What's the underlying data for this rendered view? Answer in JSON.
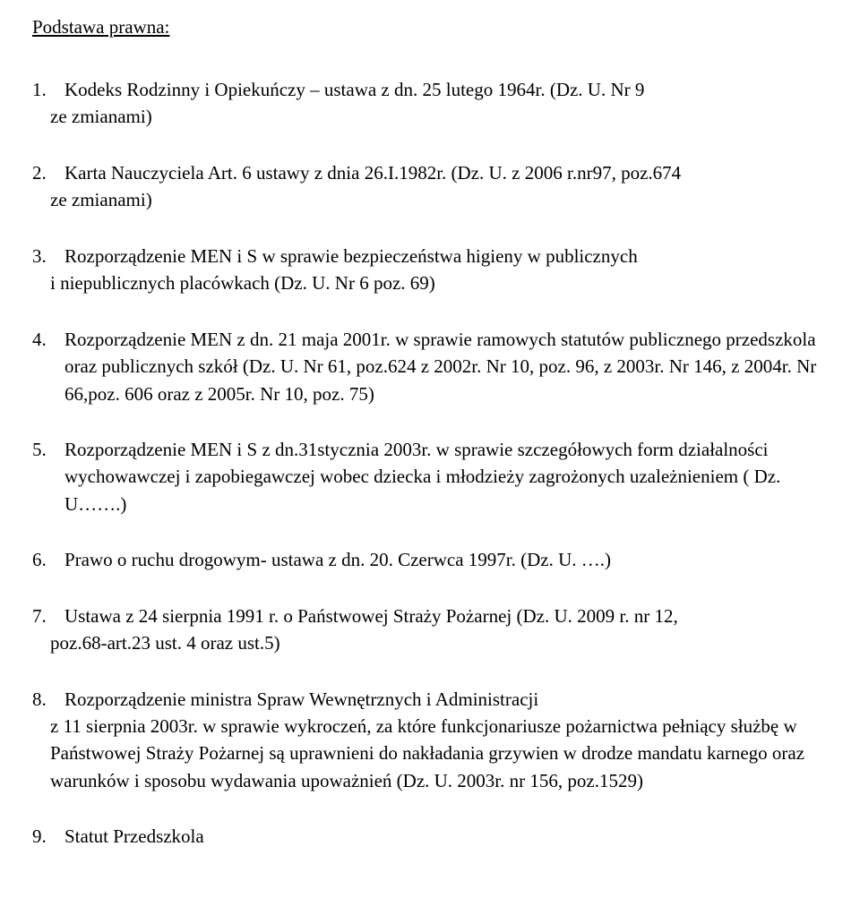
{
  "heading": "Podstawa prawna:",
  "items": [
    {
      "line1": "Kodeks Rodzinny i Opiekuńczy – ustawa z dn. 25 lutego 1964r. (Dz. U. Nr 9",
      "line2": "ze zmianami)"
    },
    {
      "line1": "Karta Nauczyciela Art. 6 ustawy z dnia 26.I.1982r. (Dz. U. z 2006 r.nr97, poz.674",
      "line2": "ze zmianami)"
    },
    {
      "line1": "Rozporządzenie MEN i S w sprawie bezpieczeństwa higieny w publicznych",
      "line2": "i niepublicznych placówkach (Dz. U. Nr 6 poz. 69)"
    },
    {
      "line1": "Rozporządzenie MEN z dn. 21 maja 2001r. w sprawie ramowych statutów publicznego przedszkola oraz publicznych szkół (Dz. U. Nr 61, poz.624 z 2002r. Nr 10, poz. 96, z 2003r. Nr 146, z 2004r. Nr 66,poz. 606 oraz z 2005r. Nr 10, poz. 75)"
    },
    {
      "line1": "Rozporządzenie MEN i S z dn.31stycznia 2003r. w sprawie szczegółowych form działalności wychowawczej i zapobiegawczej wobec dziecka i młodzieży zagrożonych uzależnieniem ( Dz. U…….)"
    },
    {
      "line1": "Prawo o ruchu drogowym- ustawa z dn. 20. Czerwca 1997r. (Dz. U. ….)"
    },
    {
      "line1": "Ustawa z 24 sierpnia 1991 r. o Państwowej Straży Pożarnej (Dz. U. 2009 r. nr 12,",
      "line2": " poz.68-art.23 ust. 4 oraz ust.5)"
    },
    {
      "line1": "Rozporządzenie ministra Spraw Wewnętrznych i Administracji",
      "line2": " z 11 sierpnia 2003r. w sprawie wykroczeń, za które funkcjonariusze pożarnictwa pełniący służbę w Państwowej Straży Pożarnej są uprawnieni do nakładania grzywien w drodze mandatu karnego oraz warunków i sposobu wydawania upoważnień (Dz. U. 2003r. nr 156, poz.1529)"
    },
    {
      "line1": "Statut Przedszkola"
    }
  ]
}
